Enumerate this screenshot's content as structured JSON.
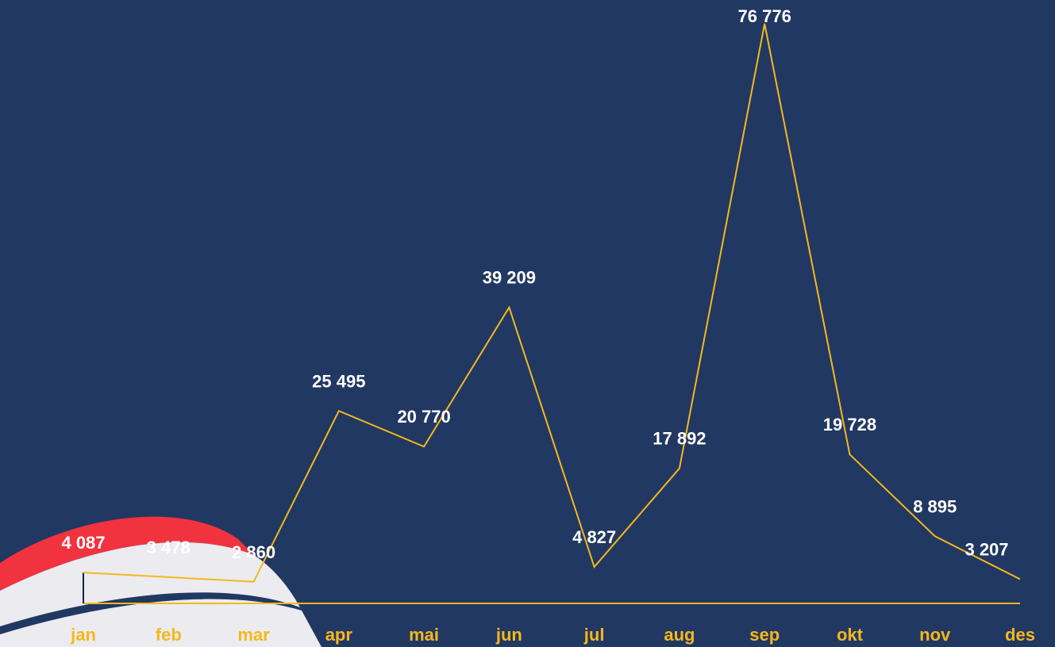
{
  "chart_data": {
    "type": "line",
    "categories": [
      "jan",
      "feb",
      "mar",
      "apr",
      "mai",
      "jun",
      "jul",
      "aug",
      "sep",
      "okt",
      "nov",
      "des"
    ],
    "values": [
      4087,
      3478,
      2860,
      25495,
      20770,
      39209,
      4827,
      17892,
      76776,
      19728,
      8895,
      3207
    ],
    "value_labels": [
      "4 087",
      "3 478",
      "2 860",
      "25 495",
      "20 770",
      "39 209",
      "4 827",
      "17 892",
      "76 776",
      "19 728",
      "8 895",
      "3 207"
    ],
    "color": "#f5b81c"
  }
}
